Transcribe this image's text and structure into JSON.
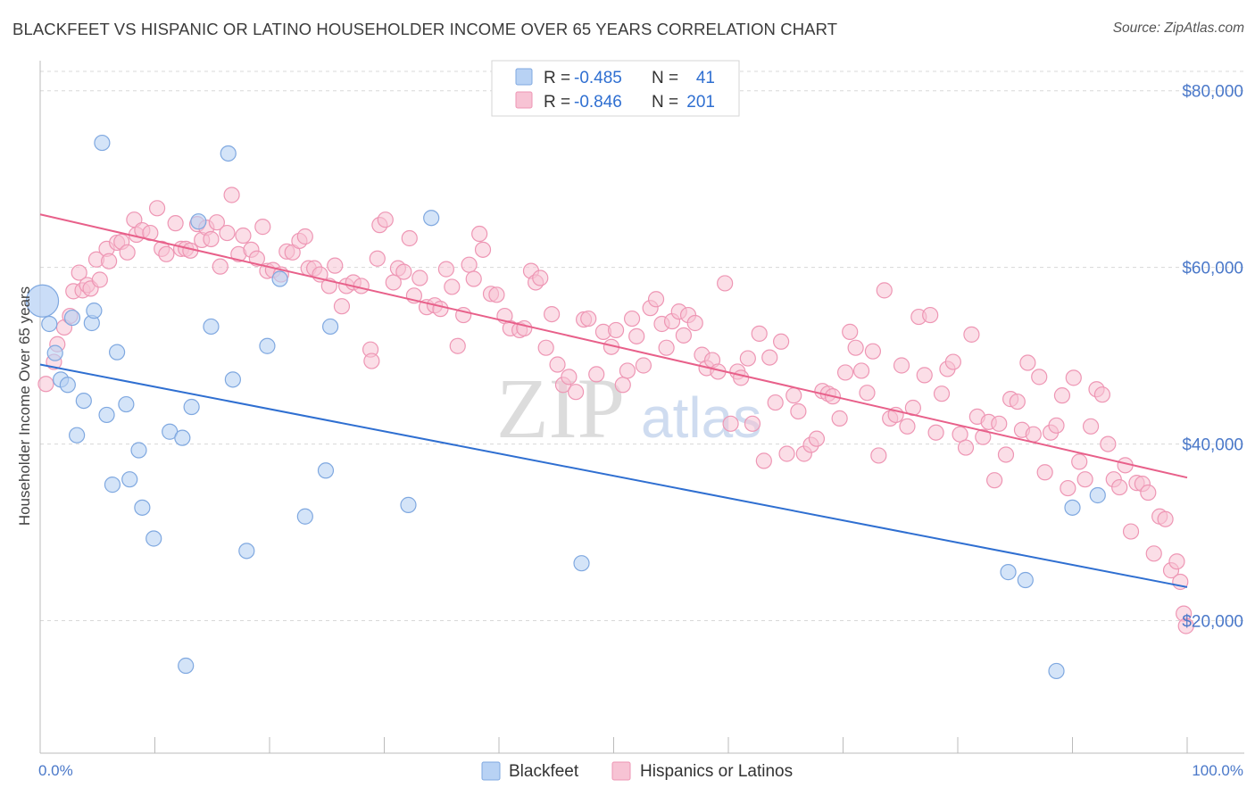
{
  "title": "BLACKFEET VS HISPANIC OR LATINO HOUSEHOLDER INCOME OVER 65 YEARS CORRELATION CHART",
  "source": "Source: ZipAtlas.com",
  "watermark": {
    "zip": "ZIP",
    "atlas": "atlas"
  },
  "legend_top": {
    "rows": [
      {
        "r_label": "R = ",
        "r_value": "-0.485",
        "n_label": "N = ",
        "n_value": "41"
      },
      {
        "r_label": "R = ",
        "r_value": "-0.846",
        "n_label": "N = ",
        "n_value": "201"
      }
    ]
  },
  "colors": {
    "blue_fill": "#b8d2f4",
    "blue_stroke": "#7fa8e0",
    "blue_line": "#2f6fd1",
    "pink_fill": "#f7c3d4",
    "pink_stroke": "#ee96b4",
    "pink_line": "#e8608a",
    "grid": "#d8d8d8",
    "tick_label": "#4a78c9"
  },
  "chart_data": {
    "type": "scatter",
    "title": "BLACKFEET VS HISPANIC OR LATINO HOUSEHOLDER INCOME OVER 65 YEARS CORRELATION CHART",
    "xlabel": "",
    "ylabel": "Householder Income Over 65 years",
    "xlim": [
      0,
      100
    ],
    "ylim": [
      5000,
      83000
    ],
    "x_tick_labels": [
      "0.0%",
      "100.0%"
    ],
    "y_ticks": [
      20000,
      40000,
      60000,
      80000
    ],
    "y_tick_labels": [
      "$20,000",
      "$40,000",
      "$60,000",
      "$80,000"
    ],
    "grid": true,
    "legend_placement": "top-center",
    "series": [
      {
        "name": "Blackfeet",
        "trendline": {
          "x": [
            0,
            100
          ],
          "y": [
            49000,
            23800
          ]
        },
        "points": [
          [
            0.2,
            56200,
            1
          ],
          [
            0.8,
            53600,
            0
          ],
          [
            1.3,
            50300,
            0
          ],
          [
            1.8,
            47300,
            0
          ],
          [
            2.4,
            46700,
            0
          ],
          [
            2.8,
            54300,
            0
          ],
          [
            3.2,
            41000,
            0
          ],
          [
            3.8,
            44900,
            0
          ],
          [
            4.5,
            53700,
            0
          ],
          [
            4.7,
            55100,
            0
          ],
          [
            5.4,
            74100,
            0
          ],
          [
            5.8,
            43300,
            0
          ],
          [
            6.3,
            35400,
            0
          ],
          [
            6.7,
            50400,
            0
          ],
          [
            7.5,
            44500,
            0
          ],
          [
            7.8,
            36000,
            0
          ],
          [
            8.6,
            39300,
            0
          ],
          [
            8.9,
            32800,
            0
          ],
          [
            9.9,
            29300,
            0
          ],
          [
            11.3,
            41400,
            0
          ],
          [
            12.4,
            40700,
            0
          ],
          [
            12.7,
            14900,
            0
          ],
          [
            13.2,
            44200,
            0
          ],
          [
            13.8,
            65200,
            0
          ],
          [
            14.9,
            53300,
            0
          ],
          [
            16.4,
            72900,
            0
          ],
          [
            16.8,
            47300,
            0
          ],
          [
            18.0,
            27900,
            0
          ],
          [
            19.8,
            51100,
            0
          ],
          [
            20.9,
            58700,
            0
          ],
          [
            23.1,
            31800,
            0
          ],
          [
            24.9,
            37000,
            0
          ],
          [
            25.3,
            53300,
            0
          ],
          [
            32.1,
            33100,
            0
          ],
          [
            34.1,
            65600,
            0
          ],
          [
            47.2,
            26500,
            0
          ],
          [
            84.4,
            25500,
            0
          ],
          [
            85.9,
            24600,
            0
          ],
          [
            88.6,
            14300,
            0
          ],
          [
            90.0,
            32800,
            0
          ],
          [
            92.2,
            34200,
            0
          ]
        ]
      },
      {
        "name": "Hispanics or Latinos",
        "trendline": {
          "x": [
            0,
            100
          ],
          "y": [
            66000,
            36200
          ]
        },
        "points": [
          [
            0.5,
            46800
          ],
          [
            1.2,
            49300
          ],
          [
            1.5,
            51300
          ],
          [
            2.1,
            53200
          ],
          [
            2.6,
            54500
          ],
          [
            2.9,
            57300
          ],
          [
            3.4,
            59400
          ],
          [
            3.7,
            57400
          ],
          [
            4.1,
            58000
          ],
          [
            4.4,
            57600
          ],
          [
            4.9,
            60900
          ],
          [
            5.2,
            58600
          ],
          [
            5.8,
            62100
          ],
          [
            6.0,
            60700
          ],
          [
            6.7,
            62800
          ],
          [
            7.1,
            62900
          ],
          [
            7.6,
            61700
          ],
          [
            8.2,
            65400
          ],
          [
            8.4,
            63700
          ],
          [
            8.9,
            64200
          ],
          [
            9.6,
            63900
          ],
          [
            10.2,
            66700
          ],
          [
            10.6,
            62100
          ],
          [
            11.0,
            61500
          ],
          [
            11.8,
            65000
          ],
          [
            12.3,
            62100
          ],
          [
            12.7,
            62100
          ],
          [
            13.1,
            61900
          ],
          [
            13.7,
            64900
          ],
          [
            14.1,
            63100
          ],
          [
            14.5,
            64500
          ],
          [
            14.9,
            63200
          ],
          [
            15.4,
            65100
          ],
          [
            15.7,
            60100
          ],
          [
            16.3,
            63900
          ],
          [
            16.7,
            68200
          ],
          [
            17.3,
            61500
          ],
          [
            17.7,
            63600
          ],
          [
            18.4,
            62000
          ],
          [
            18.9,
            61000
          ],
          [
            19.4,
            64600
          ],
          [
            19.8,
            59600
          ],
          [
            20.3,
            59700
          ],
          [
            21.0,
            59200
          ],
          [
            21.5,
            61800
          ],
          [
            22.0,
            61700
          ],
          [
            22.6,
            63000
          ],
          [
            23.1,
            63500
          ],
          [
            23.4,
            59900
          ],
          [
            23.9,
            59900
          ],
          [
            24.4,
            59200
          ],
          [
            25.2,
            57900
          ],
          [
            25.7,
            60200
          ],
          [
            26.3,
            55600
          ],
          [
            26.7,
            57900
          ],
          [
            27.3,
            58300
          ],
          [
            28.0,
            57900
          ],
          [
            28.8,
            50700
          ],
          [
            28.9,
            49400
          ],
          [
            29.4,
            61000
          ],
          [
            29.6,
            64800
          ],
          [
            30.1,
            65400
          ],
          [
            30.8,
            58300
          ],
          [
            31.2,
            59900
          ],
          [
            31.7,
            59500
          ],
          [
            32.2,
            63300
          ],
          [
            32.6,
            56800
          ],
          [
            33.1,
            58800
          ],
          [
            33.7,
            55500
          ],
          [
            34.4,
            55700
          ],
          [
            34.9,
            55300
          ],
          [
            35.4,
            59800
          ],
          [
            35.9,
            57800
          ],
          [
            36.4,
            51100
          ],
          [
            36.9,
            54600
          ],
          [
            37.4,
            60300
          ],
          [
            37.8,
            58700
          ],
          [
            38.3,
            63800
          ],
          [
            38.6,
            62000
          ],
          [
            39.3,
            57000
          ],
          [
            39.8,
            56900
          ],
          [
            40.5,
            54500
          ],
          [
            41.0,
            53100
          ],
          [
            41.8,
            52900
          ],
          [
            42.2,
            53100
          ],
          [
            42.8,
            59600
          ],
          [
            43.2,
            58300
          ],
          [
            43.6,
            58800
          ],
          [
            44.1,
            50900
          ],
          [
            44.6,
            54700
          ],
          [
            45.1,
            49000
          ],
          [
            45.6,
            46700
          ],
          [
            46.1,
            47600
          ],
          [
            46.7,
            45900
          ],
          [
            47.4,
            54100
          ],
          [
            47.8,
            54200
          ],
          [
            48.5,
            47900
          ],
          [
            49.1,
            52700
          ],
          [
            49.8,
            51000
          ],
          [
            50.2,
            52900
          ],
          [
            50.8,
            46700
          ],
          [
            51.2,
            48300
          ],
          [
            51.6,
            54200
          ],
          [
            52.0,
            52200
          ],
          [
            52.6,
            48900
          ],
          [
            53.2,
            55400
          ],
          [
            53.7,
            56400
          ],
          [
            54.2,
            53600
          ],
          [
            54.6,
            50900
          ],
          [
            55.1,
            53900
          ],
          [
            55.7,
            55000
          ],
          [
            56.1,
            52300
          ],
          [
            56.5,
            54600
          ],
          [
            57.1,
            53700
          ],
          [
            57.7,
            50100
          ],
          [
            58.1,
            48600
          ],
          [
            58.6,
            49500
          ],
          [
            59.1,
            48200
          ],
          [
            59.7,
            58200
          ],
          [
            60.2,
            42300
          ],
          [
            60.8,
            48200
          ],
          [
            61.1,
            47500
          ],
          [
            61.7,
            49700
          ],
          [
            62.1,
            42300
          ],
          [
            62.7,
            52500
          ],
          [
            63.1,
            38100
          ],
          [
            63.6,
            49800
          ],
          [
            64.1,
            44700
          ],
          [
            64.6,
            51600
          ],
          [
            65.1,
            38900
          ],
          [
            65.7,
            45500
          ],
          [
            66.1,
            43700
          ],
          [
            66.6,
            38900
          ],
          [
            67.2,
            39900
          ],
          [
            67.7,
            40600
          ],
          [
            68.2,
            46000
          ],
          [
            68.7,
            45700
          ],
          [
            69.1,
            45400
          ],
          [
            69.7,
            42900
          ],
          [
            70.2,
            48100
          ],
          [
            70.6,
            52700
          ],
          [
            71.1,
            50900
          ],
          [
            71.6,
            48300
          ],
          [
            72.1,
            45800
          ],
          [
            72.6,
            50500
          ],
          [
            73.1,
            38700
          ],
          [
            73.6,
            57400
          ],
          [
            74.1,
            42900
          ],
          [
            74.6,
            43300
          ],
          [
            75.1,
            48900
          ],
          [
            75.6,
            42000
          ],
          [
            76.1,
            44100
          ],
          [
            76.6,
            54400
          ],
          [
            77.1,
            47800
          ],
          [
            77.6,
            54600
          ],
          [
            78.1,
            41300
          ],
          [
            78.6,
            45700
          ],
          [
            79.1,
            48500
          ],
          [
            79.6,
            49300
          ],
          [
            80.2,
            41100
          ],
          [
            80.7,
            39600
          ],
          [
            81.2,
            52400
          ],
          [
            81.7,
            43100
          ],
          [
            82.2,
            40800
          ],
          [
            82.7,
            42500
          ],
          [
            83.2,
            35900
          ],
          [
            83.6,
            42300
          ],
          [
            84.2,
            38800
          ],
          [
            84.6,
            45100
          ],
          [
            85.2,
            44800
          ],
          [
            85.6,
            41600
          ],
          [
            86.1,
            49200
          ],
          [
            86.6,
            41100
          ],
          [
            87.1,
            47600
          ],
          [
            87.6,
            36800
          ],
          [
            88.1,
            41300
          ],
          [
            88.6,
            42100
          ],
          [
            89.1,
            45500
          ],
          [
            89.6,
            35000
          ],
          [
            90.1,
            47500
          ],
          [
            90.6,
            38000
          ],
          [
            91.1,
            36000
          ],
          [
            91.6,
            42000
          ],
          [
            92.1,
            46200
          ],
          [
            92.6,
            45600
          ],
          [
            93.1,
            40000
          ],
          [
            93.6,
            36000
          ],
          [
            94.1,
            35100
          ],
          [
            94.6,
            37600
          ],
          [
            95.1,
            30100
          ],
          [
            95.6,
            35600
          ],
          [
            96.1,
            35500
          ],
          [
            96.6,
            34500
          ],
          [
            97.1,
            27600
          ],
          [
            97.6,
            31800
          ],
          [
            98.1,
            31500
          ],
          [
            98.6,
            25700
          ],
          [
            99.1,
            26700
          ],
          [
            99.4,
            24400
          ],
          [
            99.7,
            20800
          ],
          [
            99.9,
            19400
          ]
        ]
      }
    ]
  },
  "bottom_legend": [
    {
      "label": "Blackfeet"
    },
    {
      "label": "Hispanics or Latinos"
    }
  ]
}
